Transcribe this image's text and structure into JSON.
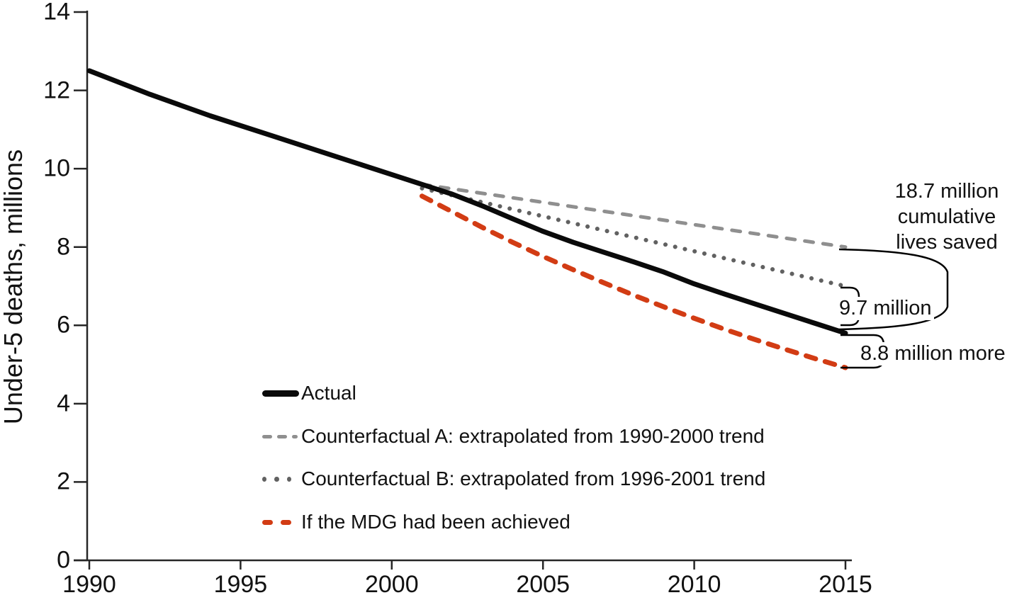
{
  "chart_data": {
    "type": "line",
    "title": "",
    "y_axis": {
      "title": "Under-5 deaths, millions",
      "min": 0,
      "max": 14,
      "ticks": [
        0,
        2,
        4,
        6,
        8,
        10,
        12,
        14
      ]
    },
    "x_axis": {
      "title": "",
      "min": 1990,
      "max": 2015,
      "ticks": [
        1990,
        1995,
        2000,
        2005,
        2010,
        2015
      ]
    },
    "grid": false,
    "legend_position": "inside-bottom-left",
    "series": [
      {
        "id": "counterfactual_a",
        "name": "Counterfactual A: extrapolated from 1990-2000 trend",
        "color": "#8f8f8f",
        "style": "dashed",
        "points": [
          [
            2001,
            9.6
          ],
          [
            2015,
            8.0
          ]
        ]
      },
      {
        "id": "counterfactual_b",
        "name": "Counterfactual B: extrapolated from 1996-2001 trend",
        "color": "#616161",
        "style": "dotted",
        "points": [
          [
            2001,
            9.5
          ],
          [
            2015,
            7.0
          ]
        ]
      },
      {
        "id": "mdg",
        "name": "If the MDG had been achieved",
        "color": "#d23c14",
        "style": "dashed",
        "points": [
          [
            2001,
            9.3
          ],
          [
            2002,
            8.9
          ],
          [
            2003,
            8.5
          ],
          [
            2004,
            8.12
          ],
          [
            2005,
            7.76
          ],
          [
            2006,
            7.42
          ],
          [
            2007,
            7.09
          ],
          [
            2008,
            6.77
          ],
          [
            2009,
            6.47
          ],
          [
            2010,
            6.18
          ],
          [
            2011,
            5.9
          ],
          [
            2012,
            5.64
          ],
          [
            2013,
            5.39
          ],
          [
            2014,
            5.15
          ],
          [
            2015,
            4.92
          ]
        ]
      },
      {
        "id": "actual",
        "name": "Actual",
        "color": "#0a0a0a",
        "style": "solid",
        "points": [
          [
            1990,
            12.5
          ],
          [
            1992,
            11.9
          ],
          [
            1994,
            11.35
          ],
          [
            1996,
            10.85
          ],
          [
            1998,
            10.35
          ],
          [
            2000,
            9.85
          ],
          [
            2001,
            9.6
          ],
          [
            2002,
            9.35
          ],
          [
            2003,
            9.05
          ],
          [
            2004,
            8.72
          ],
          [
            2005,
            8.4
          ],
          [
            2006,
            8.12
          ],
          [
            2007,
            7.87
          ],
          [
            2008,
            7.62
          ],
          [
            2009,
            7.36
          ],
          [
            2010,
            7.06
          ],
          [
            2011,
            6.8
          ],
          [
            2012,
            6.55
          ],
          [
            2013,
            6.3
          ],
          [
            2014,
            6.05
          ],
          [
            2015,
            5.8
          ]
        ]
      }
    ],
    "annotations": [
      {
        "id": "lives_saved",
        "lines": [
          "18.7 million",
          "cumulative",
          "lives saved"
        ],
        "refers_to": "gap between Counterfactual A and Actual at 2015"
      },
      {
        "id": "vs_counterfactual_b",
        "lines": [
          "9.7 million"
        ],
        "refers_to": "gap between Counterfactual B and Actual at 2015"
      },
      {
        "id": "mdg_gap",
        "lines": [
          "8.8 million more"
        ],
        "refers_to": "gap between Actual and MDG trajectory at 2015"
      }
    ]
  }
}
